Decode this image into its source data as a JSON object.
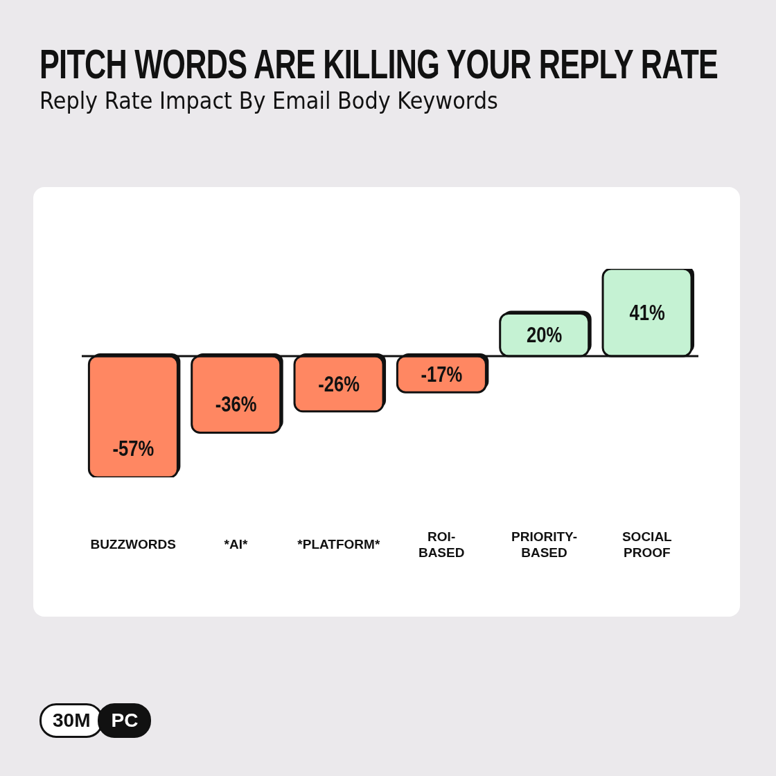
{
  "chart_data": {
    "type": "bar",
    "title": "PITCH WORDS ARE KILLING YOUR REPLY RATE",
    "subtitle": "Reply Rate Impact By Email Body Keywords",
    "categories": [
      "BUZZWORDS",
      "*AI*",
      "*PLATFORM*",
      "ROI-BASED",
      "PRIORITY-BASED",
      "SOCIAL PROOF"
    ],
    "values": [
      -57,
      -36,
      -26,
      -17,
      20,
      41
    ],
    "colors": [
      "#ff8762",
      "#ff8762",
      "#ff8762",
      "#ff8762",
      "#c5f2d3",
      "#c5f2d3"
    ],
    "value_labels": [
      "-57%",
      "-36%",
      "-26%",
      "-17%",
      "20%",
      "41%"
    ],
    "annotations": [
      "30M",
      "PC"
    ]
  }
}
